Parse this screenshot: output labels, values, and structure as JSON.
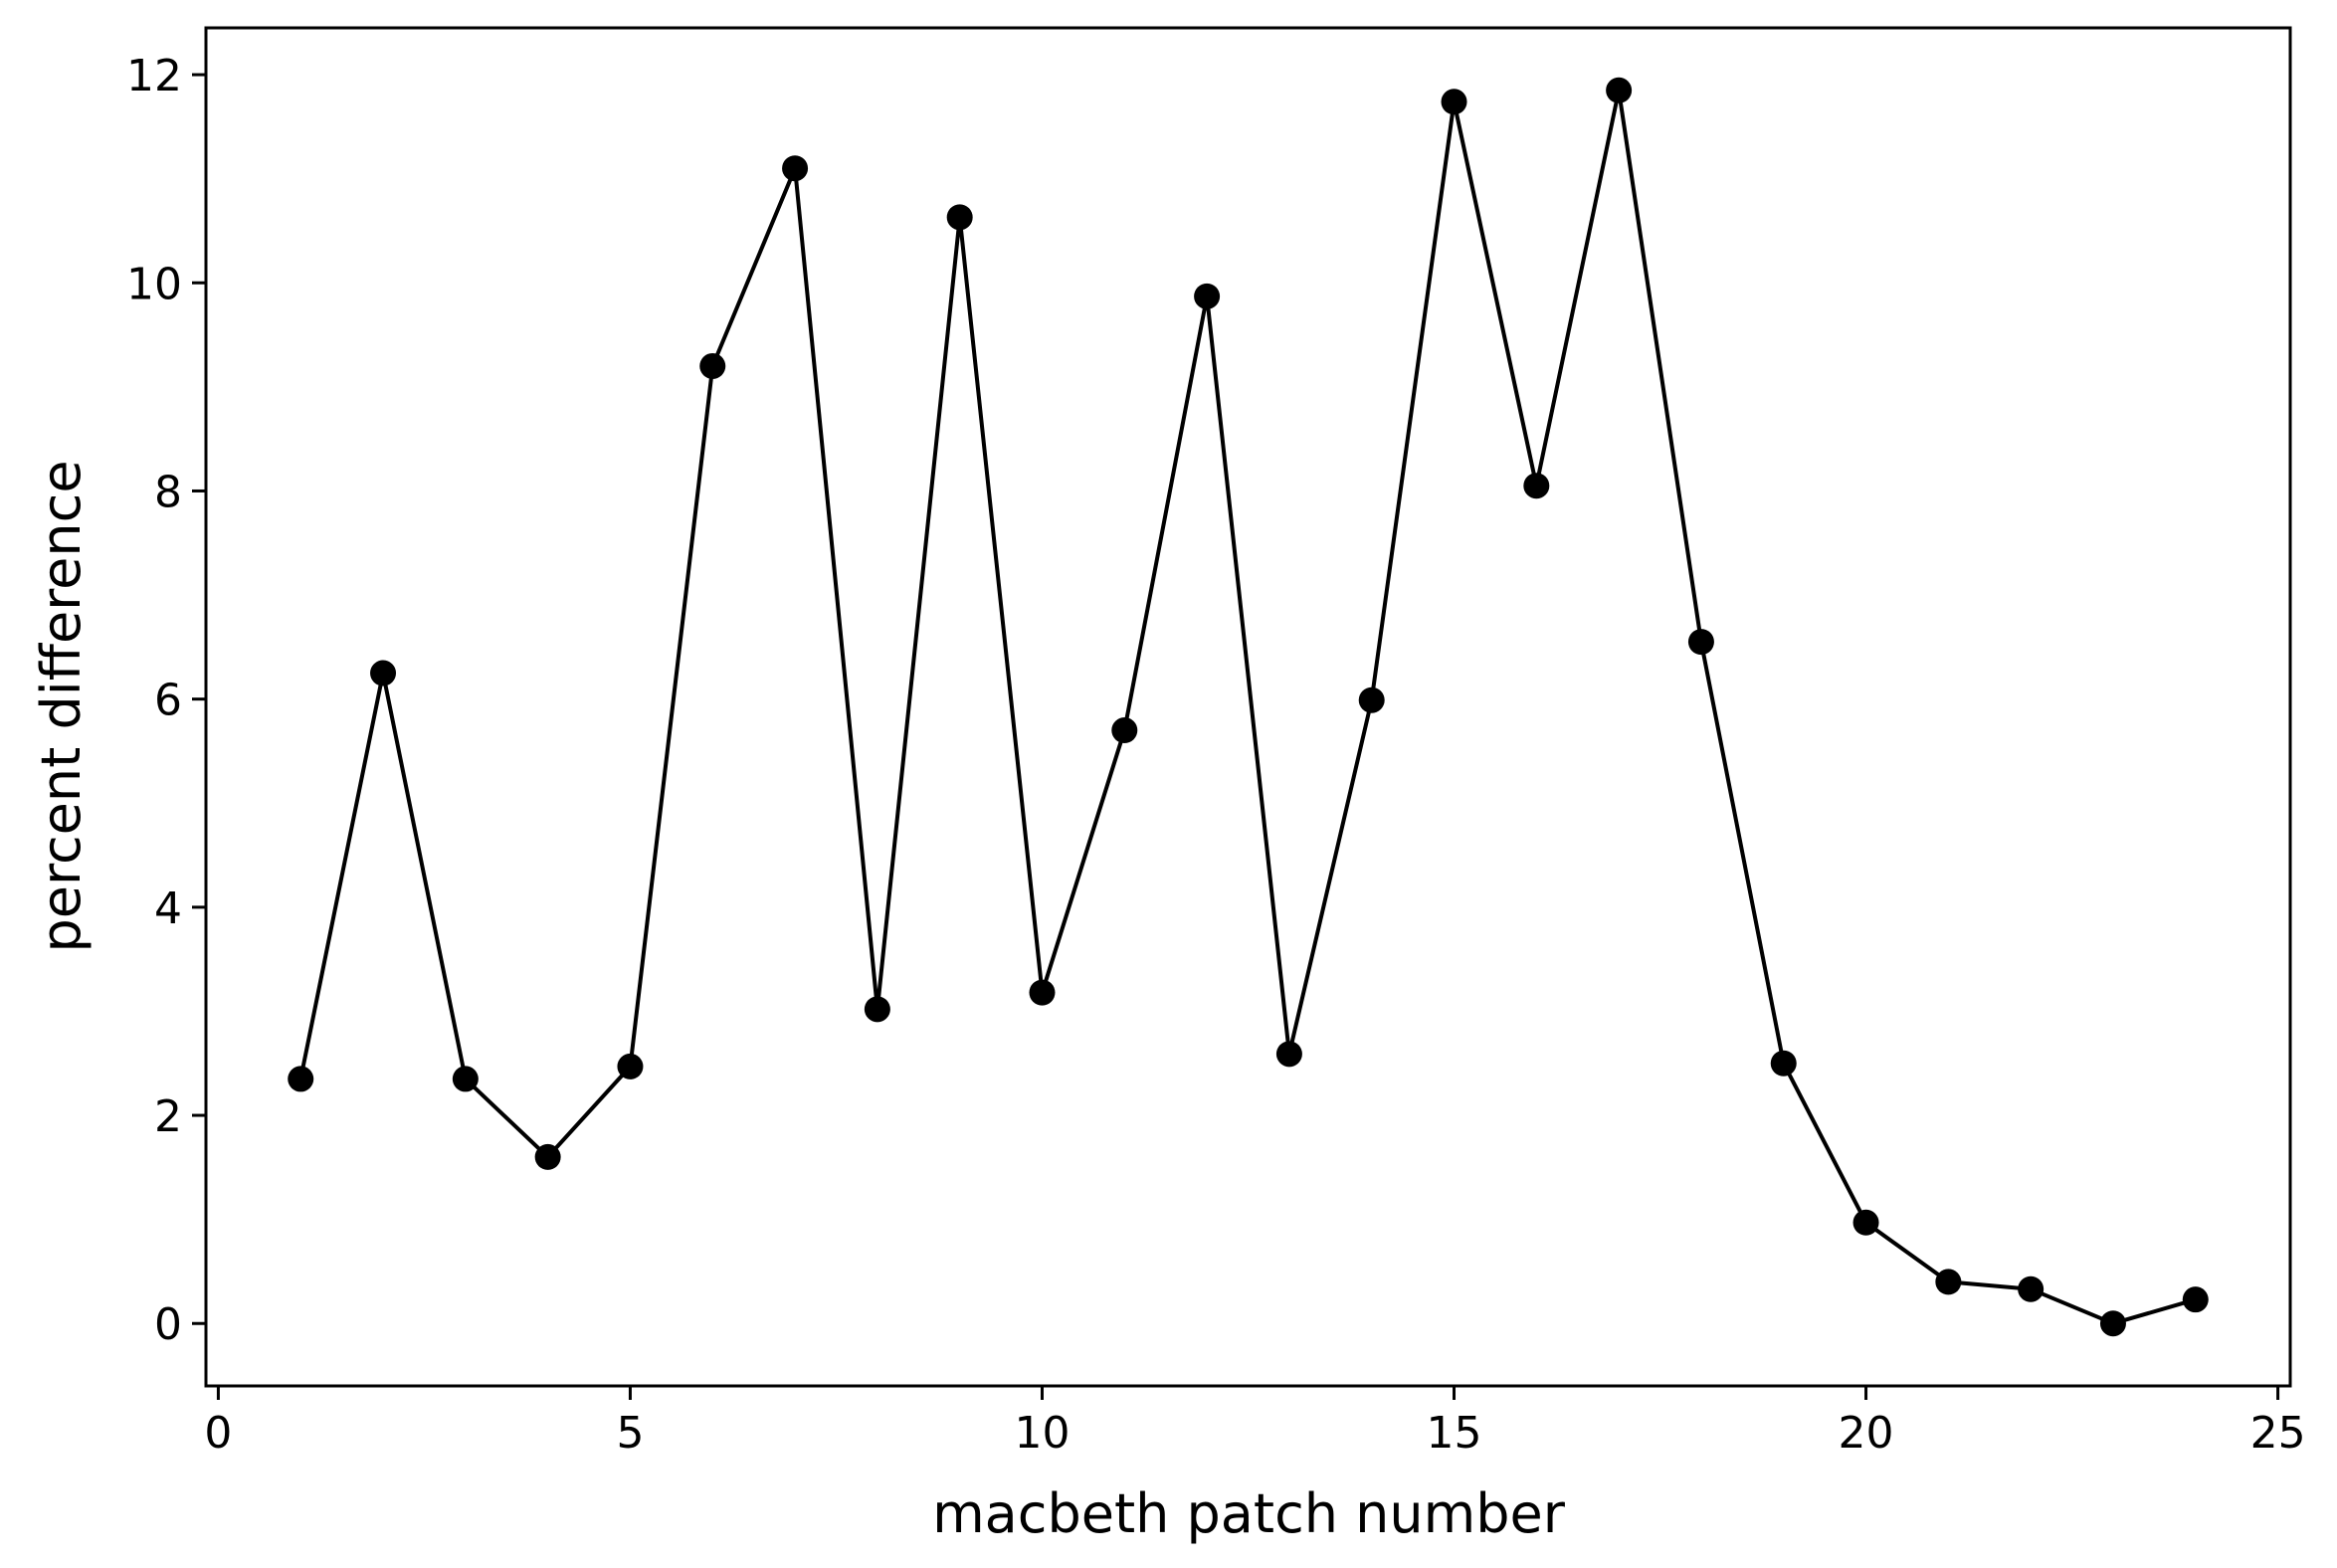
{
  "chart_data": {
    "type": "line",
    "title": "",
    "xlabel": "macbeth patch number",
    "ylabel": "percent difference",
    "xlim": [
      -0.15,
      25.15
    ],
    "ylim": [
      -0.6,
      12.45
    ],
    "xticks": [
      0,
      5,
      10,
      15,
      20,
      25
    ],
    "yticks": [
      0,
      2,
      4,
      6,
      8,
      10,
      12
    ],
    "grid": false,
    "legend": "none",
    "line_color": "#000000",
    "marker": "circle",
    "series": [
      {
        "x": [
          1,
          2,
          3,
          4,
          5,
          6,
          7,
          8,
          9,
          10,
          11,
          12,
          13,
          14,
          15,
          16,
          17,
          18,
          19,
          20,
          21,
          22,
          23,
          24
        ],
        "values": [
          2.35,
          6.25,
          2.35,
          1.6,
          2.47,
          9.2,
          11.1,
          3.02,
          10.63,
          3.18,
          5.7,
          9.87,
          2.59,
          5.99,
          11.74,
          8.05,
          11.85,
          6.55,
          2.5,
          0.97,
          0.4,
          0.33,
          0.0,
          0.23
        ]
      }
    ]
  }
}
